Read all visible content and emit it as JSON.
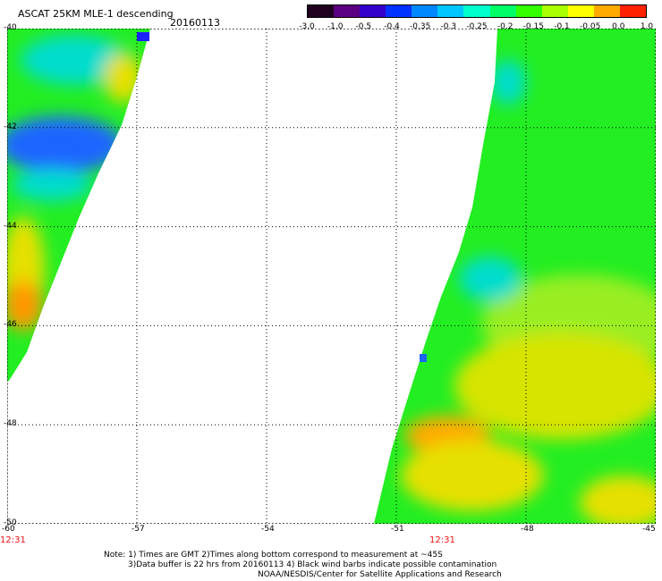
{
  "title": "ASCAT 25KM MLE-1 descending",
  "date": "20160113",
  "colorbar": {
    "labels": [
      "-3.0",
      "-1.0",
      "-0.5",
      "-0.4",
      "-0.35",
      "-0.3",
      "-0.25",
      "-0.2",
      "-0.15",
      "-0.1",
      "-0.05",
      "0.0",
      "1.0"
    ],
    "colors": [
      "#200020",
      "#5a0080",
      "#3300cc",
      "#0033ff",
      "#0088ff",
      "#00c8ff",
      "#00ffcc",
      "#00ff66",
      "#33ff00",
      "#aaff00",
      "#ffff00",
      "#ffaa00",
      "#ff2200"
    ]
  },
  "map": {
    "lat_labels": [
      "-40",
      "-42",
      "-44",
      "-46",
      "-48",
      "-50"
    ],
    "lon_labels": [
      "-60",
      "-57",
      "-54",
      "-51",
      "-48",
      "-45"
    ],
    "lat_range": [
      -50,
      -40
    ],
    "lon_range": [
      -60,
      -45
    ],
    "swath_times": [
      "12:31",
      "12:31"
    ],
    "colors": {
      "green": "#22ee22",
      "yellow": "#e6e000",
      "blue": "#1a66ff",
      "cyan": "#00ddcc"
    }
  },
  "notes": [
    "Note: 1) Times are GMT 2)Times along bottom correspond to measurement at ~45S",
    "3)Data buffer is 22 hrs from 20160113 4) Black wind barbs indicate possible contamination",
    "NOAA/NESDIS/Center for Satellite Applications and Research"
  ]
}
